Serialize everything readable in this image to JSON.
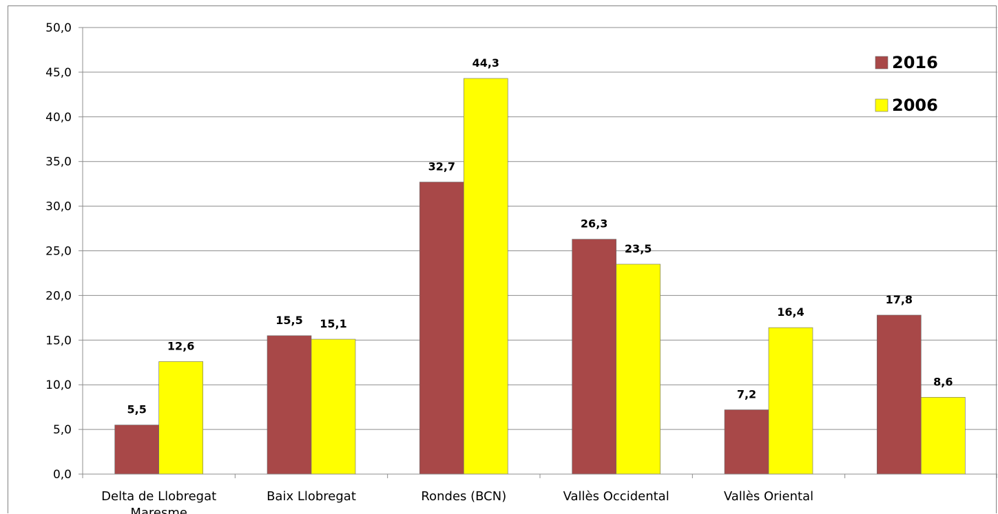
{
  "chart_data": {
    "type": "bar",
    "title": "",
    "xlabel": "",
    "ylabel": "",
    "categories": [
      "Delta de Llobregat Maresme",
      "Baix Llobregat",
      "Rondes (BCN)",
      "Vallès Occidental",
      "Vallès Oriental",
      ""
    ],
    "category_labels": [
      [
        "Delta de Llobregat",
        "Maresme"
      ],
      [
        "Baix Llobregat"
      ],
      [
        "Rondes (BCN)"
      ],
      [
        "Vallès Occidental"
      ],
      [
        "Vallès Oriental"
      ],
      [
        ""
      ]
    ],
    "series": [
      {
        "name": "2016",
        "color": "#A84848",
        "values": [
          5.5,
          15.5,
          32.7,
          26.3,
          7.2,
          17.8
        ],
        "labels": [
          "5,5",
          "15,5",
          "32,7",
          "26,3",
          "7,2",
          "17,8"
        ]
      },
      {
        "name": "2006",
        "color": "#FFFF00",
        "values": [
          12.6,
          15.1,
          44.3,
          23.5,
          16.4,
          8.6
        ],
        "labels": [
          "12,6",
          "15,1",
          "44,3",
          "23,5",
          "16,4",
          "8,6"
        ]
      }
    ],
    "ylim": [
      0,
      50
    ],
    "yticks": [
      "0,0",
      "5,0",
      "10,0",
      "15,0",
      "20,0",
      "25,0",
      "30,0",
      "35,0",
      "40,0",
      "45,0",
      "50,0"
    ],
    "grid": true,
    "legend_position": "top-right"
  }
}
